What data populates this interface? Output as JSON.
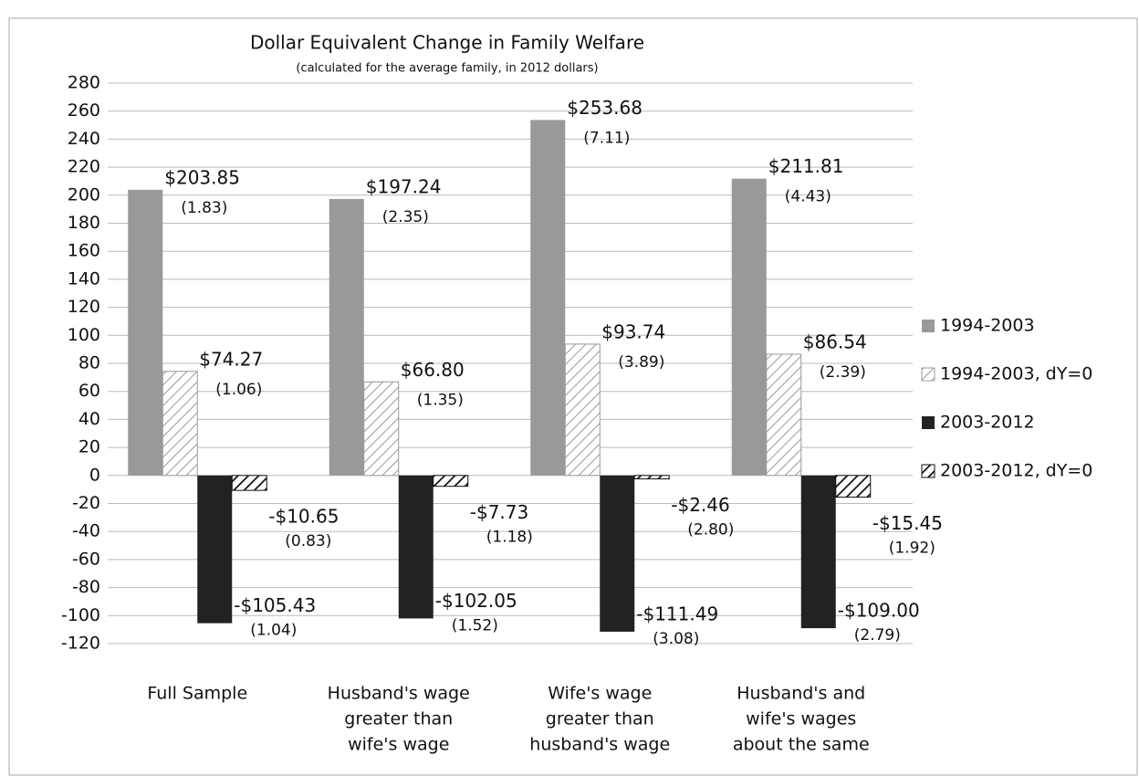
{
  "chart_data": {
    "type": "bar",
    "title": "Dollar Equivalent Change in Family Welfare",
    "subtitle": "(calculated for the average family, in 2012 dollars)",
    "categories": [
      [
        "Full Sample"
      ],
      [
        "Husband's wage",
        "greater than",
        "wife's wage"
      ],
      [
        "Wife's wage",
        "greater than",
        "husband's wage"
      ],
      [
        "Husband's and",
        "wife's wages",
        "about the same"
      ]
    ],
    "series": [
      {
        "name": "1994-2003",
        "color": "#999999",
        "hatch": false,
        "values": [
          203.85,
          197.24,
          253.68,
          211.81
        ],
        "value_labels": [
          "$203.85",
          "$197.24",
          "$253.68",
          "$211.81"
        ],
        "notes": [
          "(1.83)",
          "(2.35)",
          "(7.11)",
          "(4.43)"
        ]
      },
      {
        "name": "1994-2003, dY=0",
        "color": "#999999",
        "hatch": true,
        "values": [
          74.27,
          66.8,
          93.74,
          86.54
        ],
        "value_labels": [
          "$74.27",
          "$66.80",
          "$93.74",
          "$86.54"
        ],
        "notes": [
          "(1.06)",
          "(1.35)",
          "(3.89)",
          "(2.39)"
        ]
      },
      {
        "name": "2003-2012",
        "color": "#222222",
        "hatch": false,
        "values": [
          -105.43,
          -102.05,
          -111.49,
          -109.0
        ],
        "value_labels": [
          "-$105.43",
          "-$102.05",
          "-$111.49",
          "-$109.00"
        ],
        "notes": [
          "(1.04)",
          "(1.52)",
          "(3.08)",
          "(2.79)"
        ]
      },
      {
        "name": "2003-2012, dY=0",
        "color": "#111111",
        "hatch": true,
        "values": [
          -10.65,
          -7.73,
          -2.46,
          -15.45
        ],
        "value_labels": [
          "-$10.65",
          "-$7.73",
          "-$2.46",
          "-$15.45"
        ],
        "notes": [
          "(0.83)",
          "(1.18)",
          "(2.80)",
          "(1.92)"
        ]
      }
    ],
    "ylim": [
      -120,
      280
    ],
    "yticks": [
      -120,
      -100,
      -80,
      -60,
      -40,
      -20,
      0,
      20,
      40,
      60,
      80,
      100,
      120,
      140,
      160,
      180,
      200,
      220,
      240,
      260,
      280
    ],
    "grid": true,
    "legend": "right"
  }
}
